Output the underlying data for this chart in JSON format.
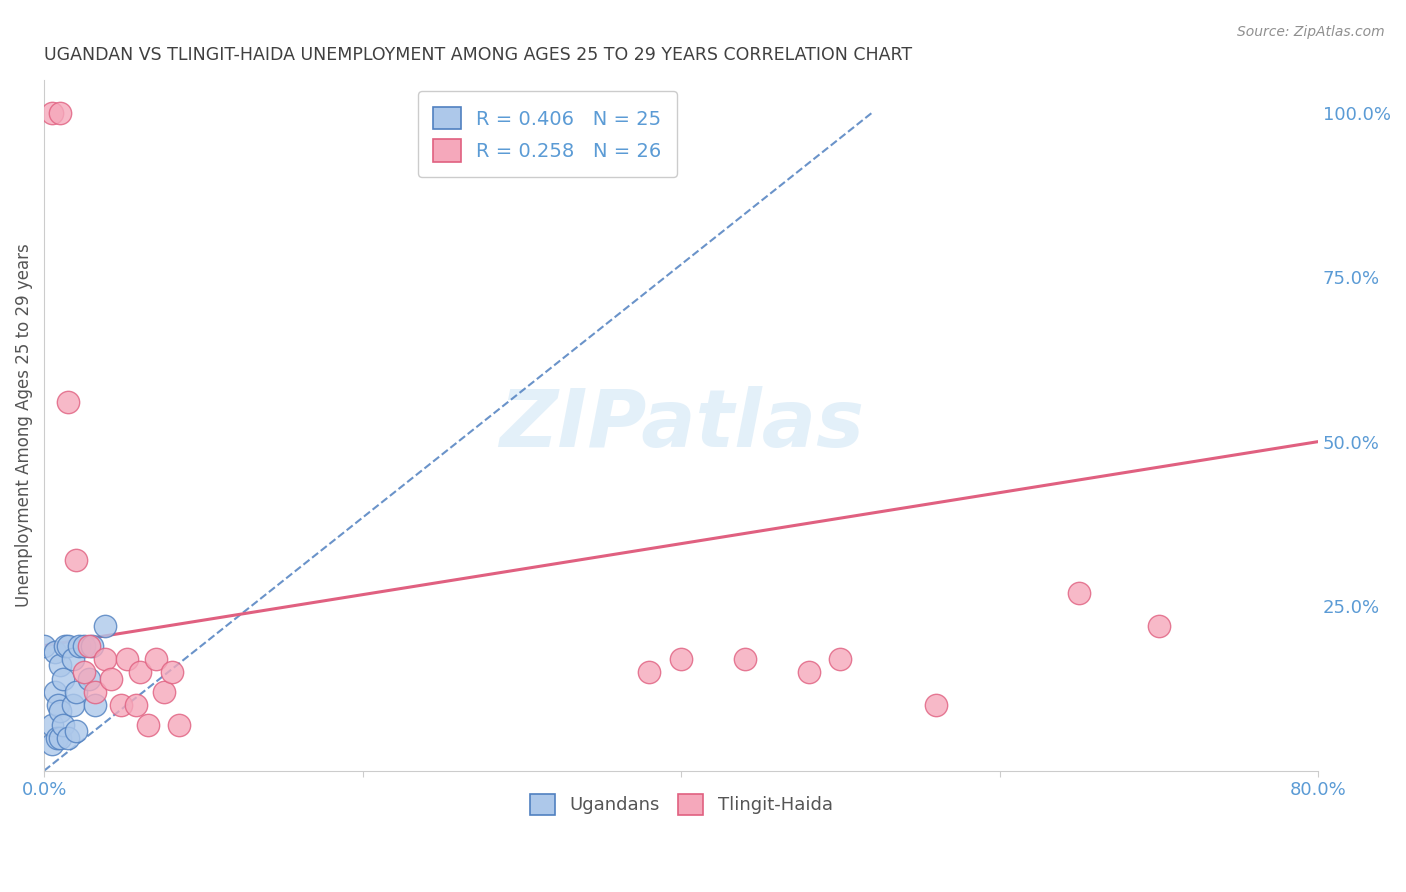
{
  "title": "UGANDAN VS TLINGIT-HAIDA UNEMPLOYMENT AMONG AGES 25 TO 29 YEARS CORRELATION CHART",
  "source": "Source: ZipAtlas.com",
  "ylabel": "Unemployment Among Ages 25 to 29 years",
  "legend_label_1": "Ugandans",
  "legend_label_2": "Tlingit-Haida",
  "r1": 0.406,
  "n1": 25,
  "r2": 0.258,
  "n2": 26,
  "color_ugandan_fill": "#adc8ea",
  "color_tlingit_fill": "#f5a8bb",
  "color_ugandan_edge": "#5080c0",
  "color_tlingit_edge": "#e06080",
  "color_right_axis": "#5b9bd5",
  "xlim": [
    0.0,
    0.8
  ],
  "ylim": [
    0.0,
    1.05
  ],
  "ugandan_x": [
    0.0,
    0.005,
    0.005,
    0.007,
    0.007,
    0.008,
    0.009,
    0.01,
    0.01,
    0.01,
    0.012,
    0.012,
    0.013,
    0.015,
    0.015,
    0.018,
    0.018,
    0.02,
    0.02,
    0.022,
    0.025,
    0.028,
    0.03,
    0.032,
    0.038
  ],
  "ugandan_y": [
    0.19,
    0.04,
    0.07,
    0.12,
    0.18,
    0.05,
    0.1,
    0.05,
    0.09,
    0.16,
    0.07,
    0.14,
    0.19,
    0.05,
    0.19,
    0.1,
    0.17,
    0.06,
    0.12,
    0.19,
    0.19,
    0.14,
    0.19,
    0.1,
    0.22
  ],
  "tlingit_x": [
    0.005,
    0.01,
    0.015,
    0.02,
    0.025,
    0.028,
    0.032,
    0.038,
    0.042,
    0.048,
    0.052,
    0.058,
    0.06,
    0.065,
    0.07,
    0.075,
    0.08,
    0.085,
    0.38,
    0.4,
    0.44,
    0.48,
    0.5,
    0.56,
    0.65,
    0.7
  ],
  "tlingit_y": [
    1.0,
    1.0,
    0.56,
    0.32,
    0.15,
    0.19,
    0.12,
    0.17,
    0.14,
    0.1,
    0.17,
    0.1,
    0.15,
    0.07,
    0.17,
    0.12,
    0.15,
    0.07,
    0.15,
    0.17,
    0.17,
    0.15,
    0.17,
    0.1,
    0.27,
    0.22
  ],
  "ugandan_trend_x": [
    0.0,
    0.52
  ],
  "ugandan_trend_y": [
    0.0,
    1.0
  ],
  "tlingit_trend_x": [
    0.0,
    0.8
  ],
  "tlingit_trend_y": [
    0.19,
    0.5
  ],
  "right_yticks": [
    0.0,
    0.25,
    0.5,
    0.75,
    1.0
  ],
  "right_yticklabels": [
    "",
    "25.0%",
    "50.0%",
    "75.0%",
    "100.0%"
  ],
  "background_color": "#ffffff",
  "grid_color": "#dddddd",
  "title_color": "#404040",
  "source_color": "#909090"
}
